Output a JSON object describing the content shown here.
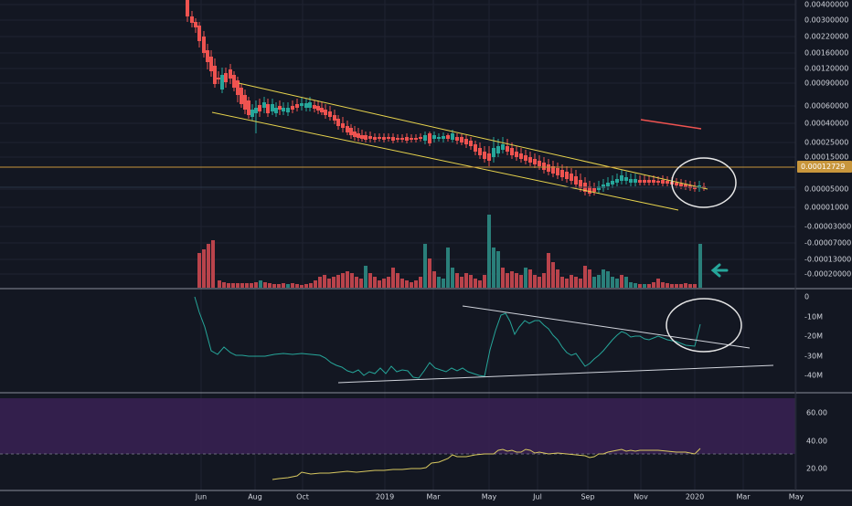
{
  "theme": {
    "background": "#131722",
    "grid": "#1f2331",
    "axis_text": "#d1d4dc",
    "up_color": "#26a69a",
    "down_color": "#ef5350",
    "vol_up_color": "#2a7f7a",
    "vol_down_color": "#b9434b",
    "trend_color": "#e8d44d",
    "hline_color": "#c8963c",
    "price_badge_color": "#c8963c",
    "obv_color": "#26a69a",
    "rsi_band_color": "#3a2154",
    "rsi_line_color": "#d8c860",
    "white_line": "#d1d4dc",
    "red_segment": "#ef5350",
    "arrow_color": "#26a69a"
  },
  "chart_data": [
    {
      "type": "candlestick",
      "price_axis_ticks": [
        "0.00400000",
        "0.00300000",
        "0.00220000",
        "0.00160000",
        "0.00120000",
        "0.00090000",
        "0.00060000",
        "0.00040000",
        "0.00025000",
        "0.00015000",
        "0.00005000",
        "0.00001000",
        "-0.00003000",
        "-0.00007000",
        "-0.00013000",
        "-0.00020000"
      ],
      "current_price_label": "0.00012729",
      "scale": "log",
      "time_axis": [
        "Jun",
        "Aug",
        "Oct",
        "2019",
        "Mar",
        "May",
        "Jul",
        "Sep",
        "Nov",
        "2020",
        "Mar",
        "May"
      ]
    },
    {
      "type": "line",
      "name": "obv",
      "y_ticks": [
        "0",
        "-10M",
        "-20M",
        "-30M",
        "-40M"
      ],
      "ylim": [
        -42,
        3
      ]
    },
    {
      "type": "line",
      "name": "rsi",
      "y_ticks": [
        "60.00",
        "40.00",
        "20.00"
      ],
      "ylim": [
        10,
        70
      ],
      "band": [
        30,
        70
      ]
    }
  ]
}
